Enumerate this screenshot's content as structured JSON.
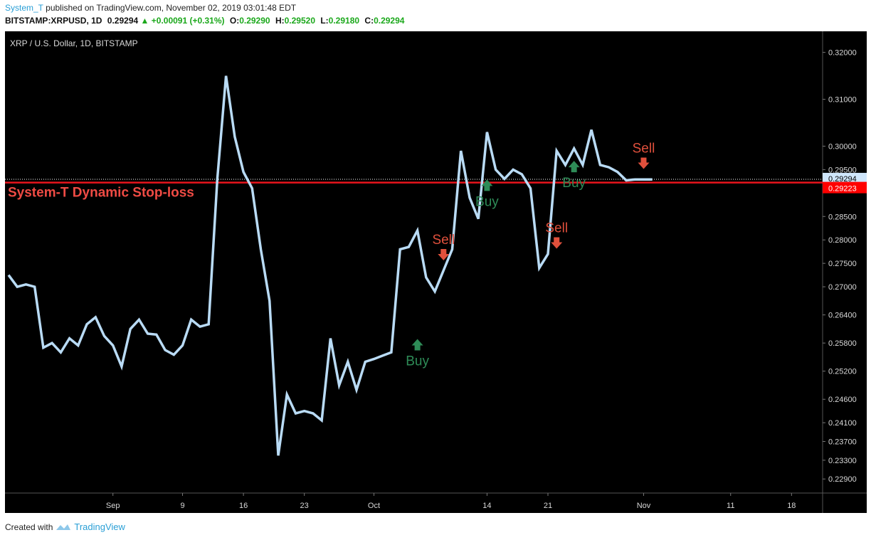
{
  "header": {
    "author": "System_T",
    "published_text": "published on TradingView.com, November 02, 2019 03:01:48 EDT",
    "symbol": "BITSTAMP:XRPUSD, 1D",
    "last": "0.29294",
    "change_arrow": "▲",
    "change": "+0.00091 (+0.31%)",
    "o_label": "O:",
    "o": "0.29290",
    "h_label": "H:",
    "h": "0.29520",
    "l_label": "L:",
    "l": "0.29180",
    "c_label": "C:",
    "c": "0.29294"
  },
  "footer": {
    "created_with": "Created with",
    "brand": "TradingView",
    "logo_icon": "tradingview-logo-icon"
  },
  "colors": {
    "background": "#000000",
    "line": "#b9dbf5",
    "stop_line": "#e8141c",
    "stop_text": "#ef4b44",
    "buy": "#2e8b57",
    "sell": "#e0503c",
    "axis_text": "#d8d8d8",
    "current_badge_bg": "#cfe6fb",
    "stop_badge_bg": "#ff0000"
  },
  "chart_data": {
    "type": "line",
    "title": "XRP / U.S. Dollar, 1D, BITSTAMP",
    "x_start": "2019-08-20",
    "x_tick_labels": [
      {
        "date": "2019-09-01",
        "label": "Sep"
      },
      {
        "date": "2019-09-09",
        "label": "9"
      },
      {
        "date": "2019-09-16",
        "label": "16"
      },
      {
        "date": "2019-09-23",
        "label": "23"
      },
      {
        "date": "2019-10-01",
        "label": "Oct"
      },
      {
        "date": "2019-10-14",
        "label": "14"
      },
      {
        "date": "2019-10-21",
        "label": "21"
      },
      {
        "date": "2019-11-01",
        "label": "Nov"
      },
      {
        "date": "2019-11-11",
        "label": "11"
      },
      {
        "date": "2019-11-18",
        "label": "18"
      }
    ],
    "y_ticks": [
      0.229,
      0.233,
      0.237,
      0.241,
      0.246,
      0.252,
      0.258,
      0.264,
      0.27,
      0.275,
      0.28,
      0.285,
      0.295,
      0.3,
      0.31,
      0.32
    ],
    "y_tick_labels": [
      "0.22900",
      "0.23300",
      "0.23700",
      "0.24100",
      "0.24600",
      "0.25200",
      "0.25800",
      "0.26400",
      "0.27000",
      "0.27500",
      "0.28000",
      "0.28500",
      "0.29500",
      "0.30000",
      "0.31000",
      "0.32000"
    ],
    "ylim": [
      0.226,
      0.3245
    ],
    "xlim": [
      "2019-08-20",
      "2019-11-21"
    ],
    "series": [
      {
        "x": [
          "2019-08-20",
          "2019-08-21",
          "2019-08-22",
          "2019-08-23",
          "2019-08-24",
          "2019-08-25",
          "2019-08-26",
          "2019-08-27",
          "2019-08-28",
          "2019-08-29",
          "2019-08-30",
          "2019-08-31",
          "2019-09-01",
          "2019-09-02",
          "2019-09-03",
          "2019-09-04",
          "2019-09-05",
          "2019-09-06",
          "2019-09-07",
          "2019-09-08",
          "2019-09-09",
          "2019-09-10",
          "2019-09-11",
          "2019-09-12",
          "2019-09-13",
          "2019-09-14",
          "2019-09-15",
          "2019-09-16",
          "2019-09-17",
          "2019-09-18",
          "2019-09-19",
          "2019-09-20",
          "2019-09-21",
          "2019-09-22",
          "2019-09-23",
          "2019-09-24",
          "2019-09-25",
          "2019-09-26",
          "2019-09-27",
          "2019-09-28",
          "2019-09-29",
          "2019-09-30",
          "2019-10-01",
          "2019-10-02",
          "2019-10-03",
          "2019-10-04",
          "2019-10-05",
          "2019-10-06",
          "2019-10-07",
          "2019-10-08",
          "2019-10-09",
          "2019-10-10",
          "2019-10-11",
          "2019-10-12",
          "2019-10-13",
          "2019-10-14",
          "2019-10-15",
          "2019-10-16",
          "2019-10-17",
          "2019-10-18",
          "2019-10-19",
          "2019-10-20",
          "2019-10-21",
          "2019-10-22",
          "2019-10-23",
          "2019-10-24",
          "2019-10-25",
          "2019-10-26",
          "2019-10-27",
          "2019-10-28",
          "2019-10-29",
          "2019-10-30",
          "2019-10-31",
          "2019-11-01",
          "2019-11-02"
        ],
        "y": [
          0.2725,
          0.27,
          0.2705,
          0.27,
          0.257,
          0.258,
          0.256,
          0.259,
          0.2575,
          0.262,
          0.2635,
          0.2595,
          0.2575,
          0.253,
          0.261,
          0.263,
          0.26,
          0.2598,
          0.2565,
          0.2555,
          0.2575,
          0.263,
          0.2615,
          0.262,
          0.293,
          0.315,
          0.302,
          0.2945,
          0.291,
          0.278,
          0.267,
          0.234,
          0.247,
          0.243,
          0.2435,
          0.243,
          0.2415,
          0.259,
          0.249,
          0.254,
          0.248,
          0.254,
          0.2546,
          0.2553,
          0.256,
          0.278,
          0.2785,
          0.282,
          0.272,
          0.269,
          0.2735,
          0.278,
          0.299,
          0.289,
          0.2845,
          0.303,
          0.295,
          0.293,
          0.295,
          0.294,
          0.291,
          0.274,
          0.277,
          0.299,
          0.296,
          0.2995,
          0.296,
          0.3035,
          0.296,
          0.2955,
          0.2945,
          0.2927,
          0.2929,
          0.2929,
          0.2929
        ]
      }
    ],
    "current_price": 0.29294,
    "current_label": "0.29294",
    "stop_loss": {
      "value": 0.29223,
      "label": "0.29223",
      "text": "System-T Dynamic Stop-loss"
    },
    "signals": [
      {
        "type": "buy",
        "date": "2019-10-06",
        "price": 0.2575,
        "label": "Buy"
      },
      {
        "type": "sell",
        "date": "2019-10-09",
        "price": 0.277,
        "label": "Sell"
      },
      {
        "type": "buy",
        "date": "2019-10-14",
        "price": 0.2915,
        "label": "Buy"
      },
      {
        "type": "sell",
        "date": "2019-10-22",
        "price": 0.2795,
        "label": "Sell"
      },
      {
        "type": "buy",
        "date": "2019-10-24",
        "price": 0.2955,
        "label": "Buy"
      },
      {
        "type": "sell",
        "date": "2019-11-01",
        "price": 0.2965,
        "label": "Sell"
      }
    ]
  }
}
